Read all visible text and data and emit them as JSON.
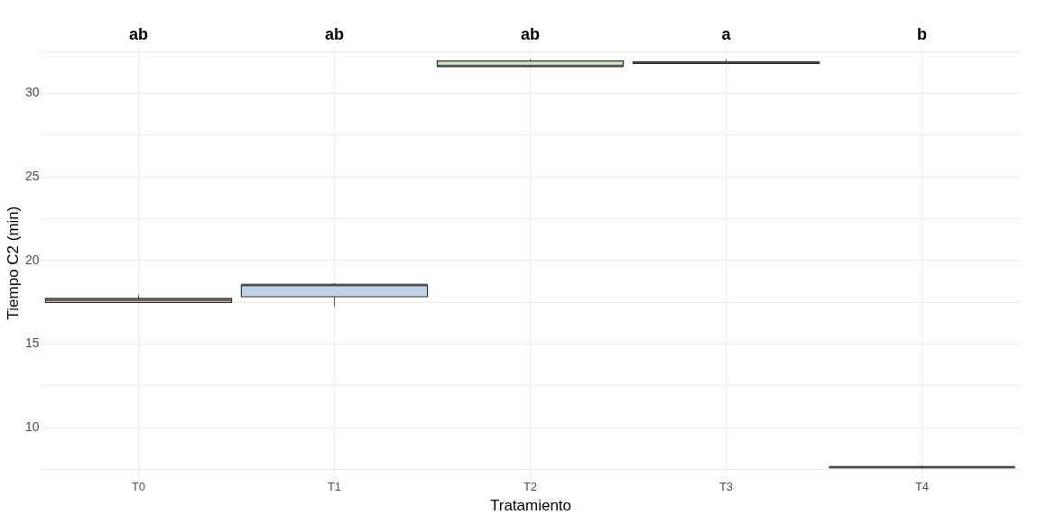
{
  "chart_data": {
    "type": "box",
    "xlabel": "Tratamiento",
    "ylabel": "Tiempo C2 (min)",
    "categories": [
      "T0",
      "T1",
      "T2",
      "T3",
      "T4"
    ],
    "colors": [
      "#f4ccc8",
      "#bcd4e6",
      "#c8e6c0",
      "#d9d9d9",
      "#333333"
    ],
    "boxes": [
      {
        "low": 17.45,
        "q1": 17.45,
        "median": 17.6,
        "q3": 17.7,
        "high": 17.9
      },
      {
        "low": 17.2,
        "q1": 17.8,
        "median": 18.5,
        "q3": 18.5,
        "high": 18.6
      },
      {
        "low": 31.6,
        "q1": 31.6,
        "median": 31.6,
        "q3": 31.9,
        "high": 32.0
      },
      {
        "low": 31.75,
        "q1": 31.75,
        "median": 31.8,
        "q3": 31.85,
        "high": 32.0
      },
      {
        "low": 7.6,
        "q1": 7.6,
        "median": 7.6,
        "q3": 7.6,
        "high": 7.7
      }
    ],
    "ylim": [
      6.9,
      32.8
    ],
    "yticks": [
      {
        "value": 7.5,
        "label": null
      },
      10,
      {
        "value": 12.5,
        "label": null
      },
      15,
      {
        "value": 17.5,
        "label": null
      },
      20,
      {
        "value": 22.5,
        "label": null
      },
      25,
      {
        "value": 27.5,
        "label": null
      },
      30,
      {
        "value": 32.5,
        "label": null
      }
    ],
    "grid": true,
    "annotations": [
      "ab",
      "ab",
      "ab",
      "a",
      "b"
    ]
  }
}
